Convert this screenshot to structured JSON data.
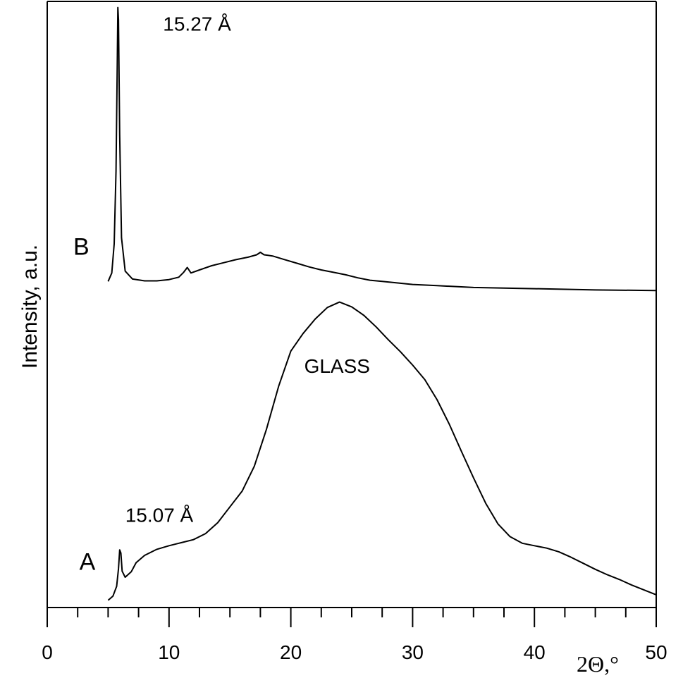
{
  "chart_data": {
    "type": "line",
    "title": "",
    "xlabel": "2Θ,°",
    "ylabel": "Intensity, a.u.",
    "xlim": [
      0,
      50
    ],
    "ylim": [
      0,
      100
    ],
    "x_ticks": [
      "0",
      "10",
      "20",
      "30",
      "40",
      "50"
    ],
    "grid": false,
    "legend": "none",
    "line_color": "#000000",
    "series": [
      {
        "name": "B",
        "points": [
          [
            5.0,
            53.8
          ],
          [
            5.3,
            55.2
          ],
          [
            5.5,
            60.0
          ],
          [
            5.65,
            72.0
          ],
          [
            5.75,
            90.0
          ],
          [
            5.8,
            99.0
          ],
          [
            5.85,
            97.0
          ],
          [
            5.95,
            78.0
          ],
          [
            6.1,
            61.0
          ],
          [
            6.4,
            55.5
          ],
          [
            7.0,
            54.2
          ],
          [
            8.0,
            53.9
          ],
          [
            9.0,
            53.9
          ],
          [
            10.0,
            54.1
          ],
          [
            10.8,
            54.5
          ],
          [
            11.2,
            55.3
          ],
          [
            11.5,
            56.1
          ],
          [
            11.8,
            55.2
          ],
          [
            12.5,
            55.7
          ],
          [
            13.5,
            56.4
          ],
          [
            14.5,
            56.9
          ],
          [
            15.5,
            57.4
          ],
          [
            16.5,
            57.8
          ],
          [
            17.2,
            58.2
          ],
          [
            17.5,
            58.6
          ],
          [
            17.8,
            58.2
          ],
          [
            18.5,
            58.0
          ],
          [
            19.5,
            57.4
          ],
          [
            20.5,
            56.8
          ],
          [
            21.5,
            56.2
          ],
          [
            22.5,
            55.7
          ],
          [
            23.5,
            55.3
          ],
          [
            24.5,
            54.9
          ],
          [
            25.5,
            54.4
          ],
          [
            26.5,
            54.0
          ],
          [
            27.5,
            53.8
          ],
          [
            28.5,
            53.6
          ],
          [
            30.0,
            53.3
          ],
          [
            32.0,
            53.1
          ],
          [
            35.0,
            52.8
          ],
          [
            40.0,
            52.6
          ],
          [
            45.0,
            52.4
          ],
          [
            50.0,
            52.3
          ]
        ]
      },
      {
        "name": "A",
        "points": [
          [
            5.0,
            1.2
          ],
          [
            5.4,
            1.9
          ],
          [
            5.7,
            3.5
          ],
          [
            5.85,
            6.4
          ],
          [
            5.95,
            9.5
          ],
          [
            6.05,
            9.0
          ],
          [
            6.15,
            6.0
          ],
          [
            6.4,
            5.0
          ],
          [
            6.9,
            5.9
          ],
          [
            7.3,
            7.4
          ],
          [
            8.0,
            8.6
          ],
          [
            9.0,
            9.6
          ],
          [
            10.0,
            10.2
          ],
          [
            11.0,
            10.7
          ],
          [
            12.0,
            11.2
          ],
          [
            13.0,
            12.2
          ],
          [
            14.0,
            14.0
          ],
          [
            15.0,
            16.6
          ],
          [
            16.0,
            19.2
          ],
          [
            17.0,
            23.3
          ],
          [
            18.0,
            29.4
          ],
          [
            19.0,
            36.5
          ],
          [
            20.0,
            42.3
          ],
          [
            21.0,
            45.2
          ],
          [
            22.0,
            47.6
          ],
          [
            23.0,
            49.5
          ],
          [
            24.0,
            50.4
          ],
          [
            25.0,
            49.6
          ],
          [
            26.0,
            48.2
          ],
          [
            27.0,
            46.3
          ],
          [
            28.0,
            44.2
          ],
          [
            29.0,
            42.2
          ],
          [
            30.0,
            40.0
          ],
          [
            31.0,
            37.6
          ],
          [
            32.0,
            34.3
          ],
          [
            33.0,
            30.3
          ],
          [
            34.0,
            25.8
          ],
          [
            35.0,
            21.4
          ],
          [
            36.0,
            17.2
          ],
          [
            37.0,
            13.8
          ],
          [
            38.0,
            11.7
          ],
          [
            39.0,
            10.6
          ],
          [
            40.0,
            10.2
          ],
          [
            41.0,
            9.8
          ],
          [
            42.0,
            9.2
          ],
          [
            43.0,
            8.3
          ],
          [
            44.0,
            7.3
          ],
          [
            45.0,
            6.3
          ],
          [
            46.0,
            5.4
          ],
          [
            47.0,
            4.6
          ],
          [
            48.0,
            3.7
          ],
          [
            49.0,
            2.9
          ],
          [
            50.0,
            2.1
          ]
        ]
      }
    ],
    "annotations": [
      {
        "text": "15.27 Å",
        "x": 12.3,
        "y": 95.2
      },
      {
        "text": "15.07 Å",
        "x": 9.2,
        "y": 14.1
      },
      {
        "text": "GLASS",
        "x": 23.8,
        "y": 38.7
      }
    ],
    "series_labels": [
      {
        "text": "B",
        "x": 2.8,
        "y": 58.2
      },
      {
        "text": "A",
        "x": 3.3,
        "y": 6.2
      }
    ]
  }
}
